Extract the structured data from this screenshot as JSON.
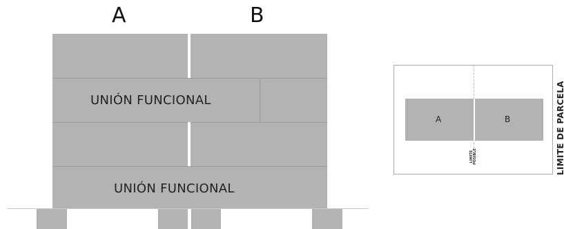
{
  "elevation": {
    "label_a": "A",
    "label_b": "B",
    "band_1_label": "UNIÓN FUNCIONAL",
    "band_2_label": "UNIÓN FUNCIONAL"
  },
  "plan": {
    "label_a": "A",
    "label_b": "B",
    "possible_limit_label": "LIMITE POSIBLE",
    "plot_limit_label": "LIMITE DE PARCELA"
  },
  "colors": {
    "block_fill": "#b3b3b3",
    "line": "#9a9a9a",
    "background": "#ffffff"
  }
}
